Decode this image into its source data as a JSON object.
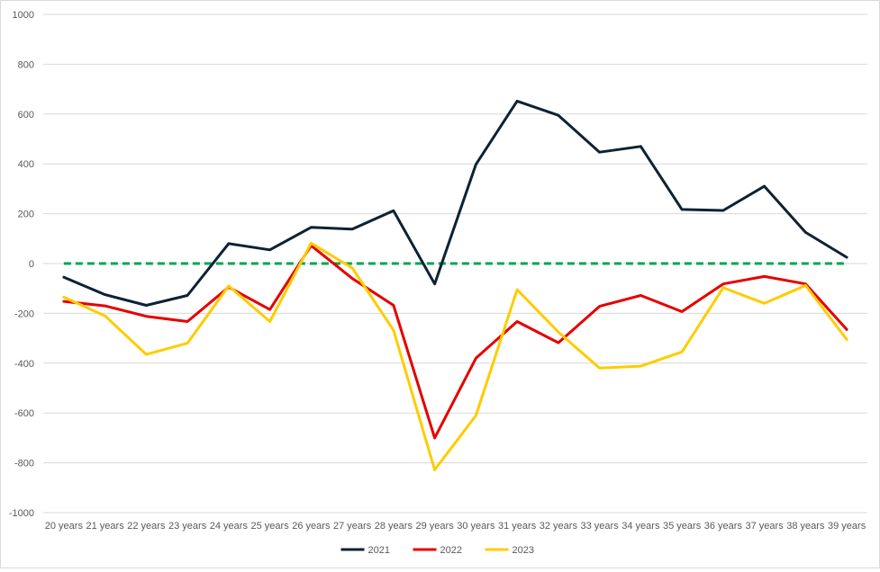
{
  "chart_data": {
    "type": "line",
    "categories": [
      "20 years",
      "21 years",
      "22 years",
      "23 years",
      "24 years",
      "25 years",
      "26 years",
      "27 years",
      "28 years",
      "29 years",
      "30 years",
      "31 years",
      "32 years",
      "33 years",
      "34 years",
      "35 years",
      "36 years",
      "37 years",
      "38 years",
      "39 years"
    ],
    "series": [
      {
        "name": "2021",
        "color": "#0d2233",
        "values": [
          -55,
          -125,
          -168,
          -128,
          80,
          55,
          145,
          138,
          212,
          -82,
          398,
          652,
          595,
          447,
          470,
          217,
          213,
          310,
          125,
          25
        ]
      },
      {
        "name": "2022",
        "color": "#e60000",
        "values": [
          -152,
          -170,
          -212,
          -233,
          -95,
          -185,
          72,
          -60,
          -168,
          -700,
          -380,
          -233,
          -318,
          -172,
          -128,
          -193,
          -82,
          -52,
          -82,
          -265
        ]
      },
      {
        "name": "2023",
        "color": "#ffcc00",
        "values": [
          -135,
          -210,
          -365,
          -320,
          -90,
          -233,
          82,
          -18,
          -268,
          -828,
          -610,
          -105,
          -275,
          -420,
          -412,
          -355,
          -97,
          -160,
          -88,
          -305
        ]
      }
    ],
    "reference_line": {
      "value": 0,
      "color": "#00a651",
      "style": "dashed"
    },
    "ylim": [
      -1000,
      1000
    ],
    "yticks": [
      -1000,
      -800,
      -600,
      -400,
      -200,
      0,
      200,
      400,
      600,
      800,
      1000
    ],
    "grid": true,
    "legend_position": "bottom"
  }
}
